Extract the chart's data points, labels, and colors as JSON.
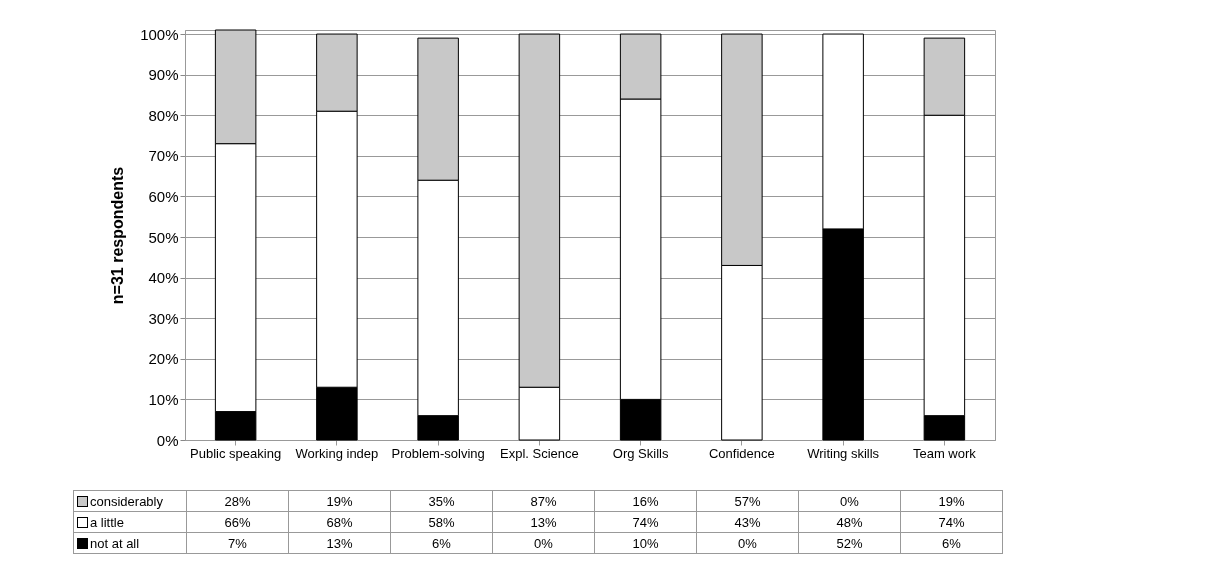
{
  "chart_data": {
    "type": "bar",
    "stacked": true,
    "ylabel": "n=31 respondents",
    "categories": [
      "Public speaking",
      "Working indep",
      "Problem-solving",
      "Expl. Science",
      "Org Skills",
      "Confidence",
      "Writing skills",
      "Team work"
    ],
    "series": [
      {
        "name": "not at all",
        "color": "#000000",
        "values": [
          7,
          13,
          6,
          0,
          10,
          0,
          52,
          6
        ],
        "value_labels": [
          "7%",
          "13%",
          "6%",
          "0%",
          "10%",
          "0%",
          "52%",
          "6%"
        ]
      },
      {
        "name": "a little",
        "color": "#ffffff",
        "values": [
          66,
          68,
          58,
          13,
          74,
          43,
          48,
          74
        ],
        "value_labels": [
          "66%",
          "68%",
          "58%",
          "13%",
          "74%",
          "43%",
          "48%",
          "74%"
        ]
      },
      {
        "name": "considerably",
        "color": "#c8c8c8",
        "values": [
          28,
          19,
          35,
          87,
          16,
          57,
          0,
          19
        ],
        "value_labels": [
          "28%",
          "19%",
          "35%",
          "87%",
          "16%",
          "57%",
          "0%",
          "19%"
        ]
      }
    ],
    "ylim": [
      0,
      101
    ],
    "yticks": [
      {
        "value": 0,
        "label": "0%"
      },
      {
        "value": 10,
        "label": "10%"
      },
      {
        "value": 20,
        "label": "20%"
      },
      {
        "value": 30,
        "label": "30%"
      },
      {
        "value": 40,
        "label": "40%"
      },
      {
        "value": 50,
        "label": "50%"
      },
      {
        "value": 60,
        "label": "60%"
      },
      {
        "value": 70,
        "label": "70%"
      },
      {
        "value": 80,
        "label": "80%"
      },
      {
        "value": 90,
        "label": "90%"
      },
      {
        "value": 100,
        "label": "100%"
      }
    ],
    "grid": "y",
    "legend": "bottom"
  }
}
